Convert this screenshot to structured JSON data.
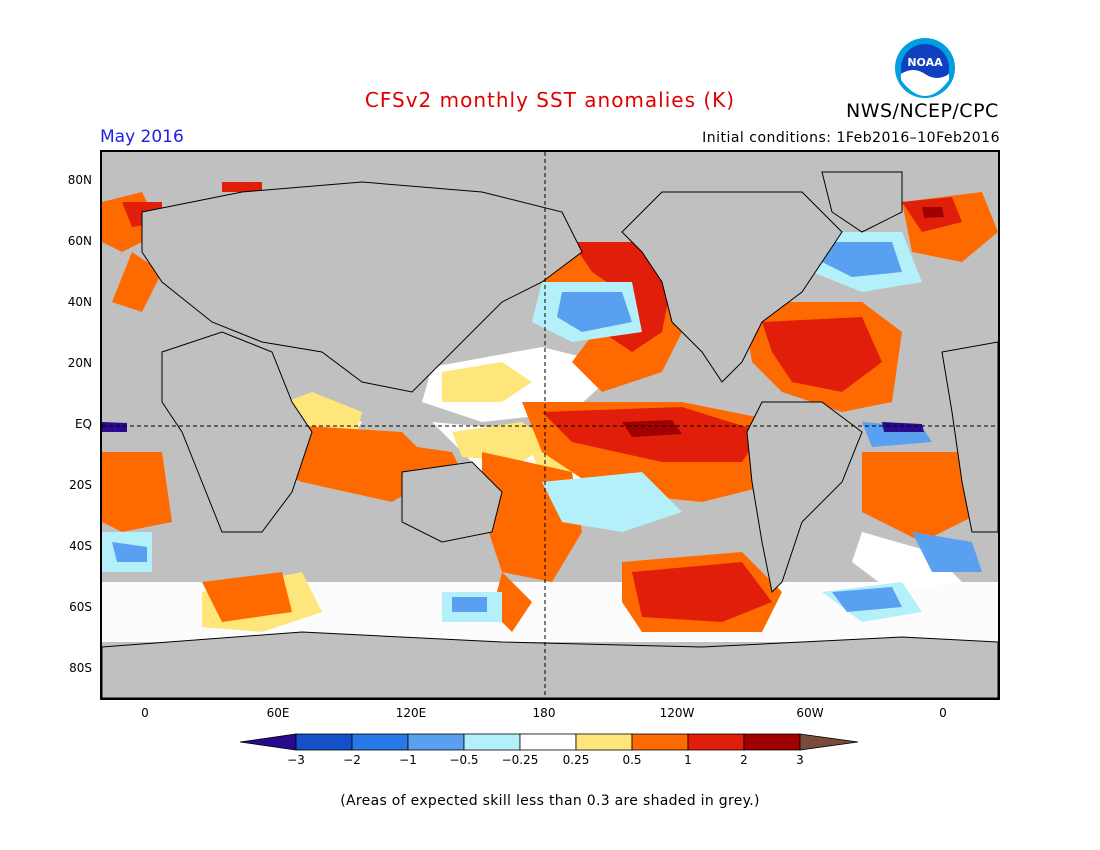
{
  "title": "CFSv2 monthly SST anomalies (K)",
  "month": "May 2016",
  "initial_conditions": "Initial conditions: 1Feb2016–10Feb2016",
  "agency": "NWS/NCEP/CPC",
  "logo_text": "NOAA",
  "note": "(Areas of expected skill less than 0.3 are shaded in grey.)",
  "lat_labels": [
    "80N",
    "60N",
    "40N",
    "20N",
    "EQ",
    "20S",
    "40S",
    "60S",
    "80S"
  ],
  "lon_labels": [
    "0",
    "60E",
    "120E",
    "180",
    "120W",
    "60W",
    "0"
  ],
  "colorbar": {
    "labels": [
      "−3",
      "−2",
      "−1",
      "−0.5",
      "−0.25",
      "0.25",
      "0.5",
      "1",
      "2",
      "3"
    ],
    "colors": [
      "#2a0a8c",
      "#1450c8",
      "#2878e6",
      "#5aa0f0",
      "#b4f0fa",
      "#ffffff",
      "#ffe67a",
      "#ff6a00",
      "#e01e0a",
      "#a00000",
      "#7a4a3a"
    ]
  },
  "colors": {
    "grey": "#c0c0c0",
    "land": "#c0c0c0",
    "warm_1": "#ff6a00",
    "warm_2": "#e01e0a",
    "warm_3": "#a00000",
    "warm_05": "#ffe67a",
    "cool_025": "#b4f0fa",
    "cool_05": "#5aa0f0",
    "cool_1": "#2878e6",
    "cool_2": "#1450c8"
  }
}
